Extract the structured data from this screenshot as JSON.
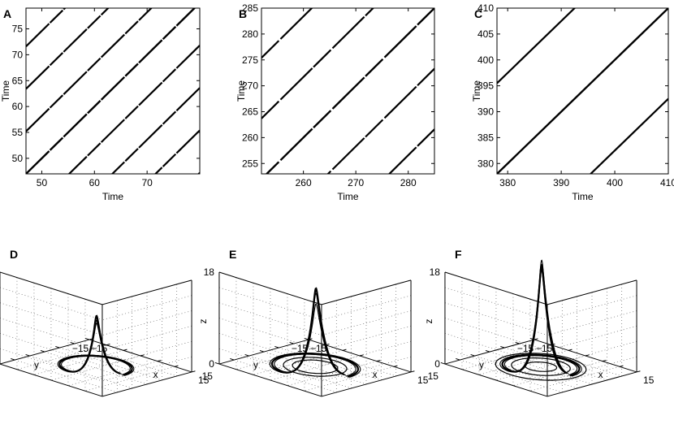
{
  "chart_data": [
    {
      "id": "A",
      "type": "recurrence_plot",
      "label": "A",
      "xlabel": "Time",
      "ylabel": "Time",
      "xlim": [
        47,
        80
      ],
      "ylim": [
        47,
        79
      ],
      "xticks": [
        "50",
        "60",
        "70"
      ],
      "yticks": [
        "50",
        "55",
        "60",
        "65",
        "70",
        "75"
      ],
      "period": 8.2,
      "diagonal_offsets": [
        -32.8,
        -24.6,
        -16.4,
        -8.2,
        0,
        8.2,
        16.4,
        24.6,
        32.8
      ]
    },
    {
      "id": "B",
      "type": "recurrence_plot",
      "label": "B",
      "xlabel": "Time",
      "ylabel": "Time",
      "xlim": [
        252,
        285
      ],
      "ylim": [
        253,
        285
      ],
      "xticks": [
        "260",
        "270",
        "280"
      ],
      "yticks": [
        "255",
        "260",
        "265",
        "270",
        "275",
        "280",
        "285"
      ],
      "period": 11.7,
      "diagonal_offsets": [
        -23.4,
        -11.7,
        0,
        11.7,
        23.4
      ]
    },
    {
      "id": "C",
      "type": "recurrence_plot",
      "label": "C",
      "xlabel": "Time",
      "ylabel": "Time",
      "xlim": [
        378,
        410
      ],
      "ylim": [
        378,
        410
      ],
      "xticks": [
        "380",
        "390",
        "400"
      ],
      "yticks": [
        "380",
        "385",
        "390",
        "395",
        "400",
        "405",
        "410"
      ],
      "extra_xtick": "410",
      "period": 17.5,
      "diagonal_offsets": [
        -17.5,
        0,
        17.5
      ]
    },
    {
      "id": "D",
      "type": "3d_line",
      "label": "D",
      "xlabel": "x",
      "ylabel": "y",
      "zlabel": "z",
      "xlim": [
        -15,
        15
      ],
      "ylim": [
        -15,
        15
      ],
      "zlim": [
        0,
        18
      ],
      "xtick_labels": [
        "−15",
        "15"
      ],
      "ytick_labels": [
        "−15",
        "15"
      ],
      "ztick_labels": [
        "0",
        "18"
      ],
      "grid": true,
      "attractor": {
        "base_radius": [
          8.0,
          7.6,
          8.4
        ],
        "peak_heights": [
          10.5,
          9.6,
          9.1
        ],
        "rings": []
      }
    },
    {
      "id": "E",
      "type": "3d_line",
      "label": "E",
      "xlabel": "x",
      "ylabel": "y",
      "zlabel": "z",
      "xlim": [
        -15,
        15
      ],
      "ylim": [
        -15,
        15
      ],
      "zlim": [
        0,
        18
      ],
      "xtick_labels": [
        "−15",
        "15"
      ],
      "ytick_labels": [
        "−15",
        "15"
      ],
      "ztick_labels": [
        "0",
        "18"
      ],
      "grid": true,
      "attractor": {
        "base_radius": [
          9.5,
          9.0,
          10.0
        ],
        "peak_heights": [
          16.0,
          15.0,
          13.0
        ],
        "rings": [
          5.0,
          7.0
        ]
      }
    },
    {
      "id": "F",
      "type": "3d_line",
      "label": "F",
      "xlabel": "x",
      "ylabel": "y",
      "zlabel": "z",
      "xlim": [
        -15,
        15
      ],
      "ylim": [
        -15,
        15
      ],
      "zlim": [
        0,
        18
      ],
      "xtick_labels": [
        "−15",
        "15"
      ],
      "ytick_labels": [
        "−15",
        "15"
      ],
      "ztick_labels": [
        "0",
        "18"
      ],
      "grid": true,
      "attractor": {
        "base_radius": [
          8.5,
          8.0,
          9.0
        ],
        "peak_heights": [
          20.5,
          19.5,
          21.5
        ],
        "rings": [
          3.5,
          6.5,
          10.0
        ]
      }
    }
  ]
}
